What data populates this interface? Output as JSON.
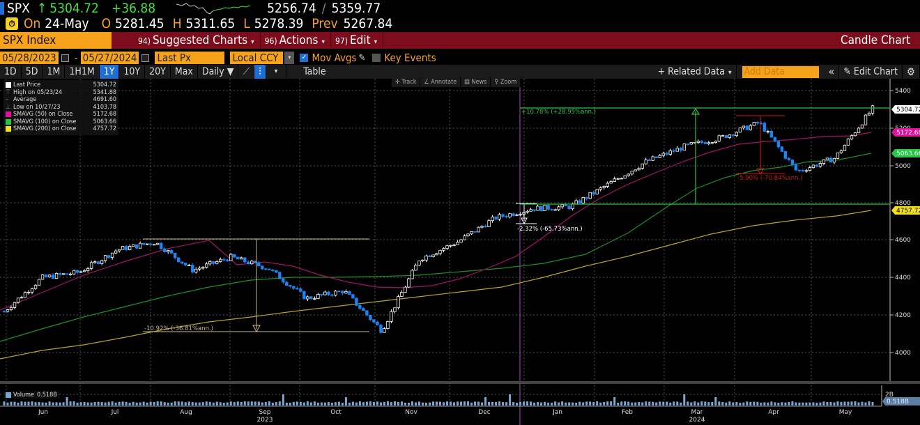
{
  "quote": {
    "symbol": "SPX",
    "arrow": "↑",
    "last": "5304.72",
    "change": "+36.88",
    "range_low": "5256.74",
    "range_sep": "/",
    "range_high": "5359.77",
    "on_label": "On",
    "date": "24-May",
    "open_label": "O",
    "open": "5281.45",
    "high_label": "H",
    "high": "5311.65",
    "low_label": "L",
    "low": "5278.39",
    "prev_label": "Prev",
    "prev": "5267.84"
  },
  "menubar": {
    "ticker": "SPX Index",
    "items": [
      {
        "num": "94)",
        "label": "Suggested Charts"
      },
      {
        "num": "96)",
        "label": "Actions"
      },
      {
        "num": "97)",
        "label": "Edit"
      }
    ],
    "chart_type": "Candle Chart"
  },
  "datebar": {
    "start": "05/28/2023",
    "dash": "-",
    "end": "05/27/2024",
    "field": "Last Px",
    "currency": "Local CCY",
    "mov_avgs": "Mov Avgs",
    "key_events": "Key Events"
  },
  "rangebar": {
    "ranges": [
      "1D",
      "5D",
      "1M",
      "1H1M",
      "1Y",
      "10Y",
      "20Y",
      "Max"
    ],
    "active": "1Y",
    "period": "Daily ▼",
    "table": "Table",
    "related": "+ Related Data",
    "add_data_placeholder": "Add Data",
    "collapse": "«",
    "edit_chart": "Edit Chart",
    "settings": "⚙"
  },
  "tools": [
    "✛ Track",
    "∠ Annotate",
    "▤ News",
    "⚲ Zoom"
  ],
  "legend": [
    {
      "label": "Last Price",
      "value": "5304.72",
      "color": "#ffffff",
      "kind": "box"
    },
    {
      "label": "High on 05/23/24",
      "value": "5341.88",
      "kind": "high"
    },
    {
      "label": "Average",
      "value": "4691.60",
      "kind": "avg"
    },
    {
      "label": "Low on 10/27/23",
      "value": "4103.78",
      "kind": "low"
    },
    {
      "label": "SMAVG (50)  on Close",
      "value": "5172.68",
      "color": "#e0119b",
      "kind": "box"
    },
    {
      "label": "SMAVG (100)  on Close",
      "value": "5063.66",
      "color": "#22c640",
      "kind": "box"
    },
    {
      "label": "SMAVG (200)  on Close",
      "value": "4757.72",
      "color": "#f2e01a",
      "kind": "box"
    }
  ],
  "volume": {
    "label": "Volume",
    "value": "0.518B",
    "axis_tick": "2B"
  },
  "colors": {
    "up_candle": "#ffffff",
    "down_candle": "#1a85f5",
    "sma50": "#a3136a",
    "sma100": "#1e8f24",
    "sma200": "#b8a621",
    "menubar": "#7d0d1c",
    "orange": "#f7a21b"
  },
  "chart_data": {
    "type": "line",
    "title": "SPX Index Candle Chart",
    "subtitle": "Daily, 05/28/2023 - 05/27/2024",
    "xlabel": "",
    "ylabel": "",
    "x_tick_labels": [
      "Jun",
      "Jul",
      "Aug",
      "Sep",
      "Oct",
      "Nov",
      "Dec",
      "Jan",
      "Feb",
      "Mar",
      "Apr",
      "May"
    ],
    "year_labels": [
      "2023",
      "2024"
    ],
    "y_ticks": [
      4000,
      4200,
      4400,
      4600,
      4800,
      5000,
      5200,
      5400
    ],
    "ylim": [
      3850,
      5460
    ],
    "grid": true,
    "legend_position": "top-left",
    "x": [
      "Jun-01",
      "Jun-15",
      "Jul-01",
      "Jul-15",
      "Aug-01",
      "Aug-15",
      "Sep-01",
      "Sep-15",
      "Oct-01",
      "Oct-15",
      "Oct-27",
      "Nov-15",
      "Dec-01",
      "Dec-15",
      "Jan-01",
      "Jan-15",
      "Feb-01",
      "Feb-15",
      "Mar-01",
      "Mar-15",
      "Apr-01",
      "Apr-19",
      "May-01",
      "May-24"
    ],
    "series": [
      {
        "name": "Last Price",
        "values": [
          4220,
          4400,
          4430,
          4550,
          4590,
          4440,
          4510,
          4450,
          4290,
          4330,
          4117,
          4500,
          4590,
          4720,
          4770,
          4780,
          4900,
          5020,
          5100,
          5150,
          5230,
          4967,
          5040,
          5304.72
        ]
      },
      {
        "name": "SMAVG (50)",
        "values": [
          4100,
          4170,
          4260,
          4340,
          4390,
          4440,
          4475,
          4490,
          4470,
          4420,
          4370,
          4360,
          4400,
          4480,
          4560,
          4640,
          4760,
          4860,
          4950,
          5030,
          5100,
          5130,
          5140,
          5172.68
        ]
      },
      {
        "name": "SMAVG (100)",
        "values": [
          4050,
          4080,
          4130,
          4180,
          4230,
          4280,
          4320,
          4370,
          4390,
          4400,
          4400,
          4410,
          4430,
          4470,
          4520,
          4570,
          4630,
          4700,
          4780,
          4860,
          4930,
          4990,
          5020,
          5063.66
        ]
      },
      {
        "name": "SMAVG (200)",
        "values": [
          3920,
          3950,
          3980,
          4030,
          4080,
          4130,
          4170,
          4200,
          4230,
          4260,
          4280,
          4320,
          4370,
          4420,
          4470,
          4510,
          4550,
          4600,
          4650,
          4680,
          4710,
          4730,
          4745,
          4757.72
        ]
      }
    ],
    "stats": {
      "last": 5304.72,
      "high": 5341.88,
      "high_date": "05/23/24",
      "average": 4691.6,
      "low": 4103.78,
      "low_date": "10/27/23"
    },
    "annotations": [
      {
        "text": "-10.92% (-36.81%ann.)",
        "from": 4600,
        "to": 4103.78,
        "color": "#c9bb94"
      },
      {
        "text": "-2.32% (-65.73%ann.)",
        "from": 4790,
        "to": 4690,
        "color": "#ffffff"
      },
      {
        "text": "+10.78% (+28.95%ann.)",
        "from": 4790,
        "to": 5304,
        "color": "#22c640"
      },
      {
        "text": "-5.90% (-70.84%ann.)",
        "from": 5260,
        "to": 4950,
        "color": "#cc1a1a"
      }
    ],
    "volume": {
      "last": "0.518B",
      "axis_max_label": "2B"
    },
    "right_axis_tags": [
      {
        "value": "5304.72",
        "color": "#ffffff"
      },
      {
        "value": "5172.68",
        "color": "#e0119b"
      },
      {
        "value": "5063.66",
        "color": "#22c640"
      },
      {
        "value": "4757.72",
        "color": "#f2e01a"
      },
      {
        "value": "0.518B",
        "color": "#7aa6d4"
      }
    ]
  }
}
